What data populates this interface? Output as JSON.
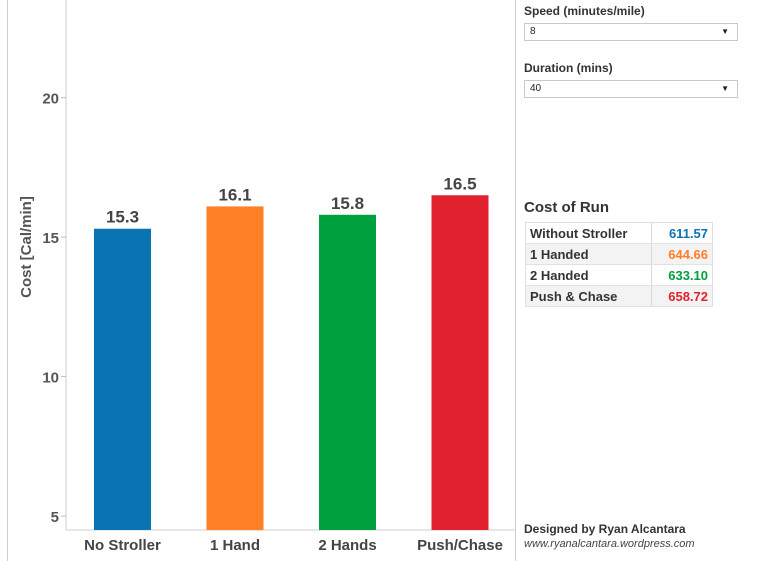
{
  "colors": {
    "no_stroller": "#0a74b3",
    "one_hand": "#ff7f27",
    "two_hands": "#00a03e",
    "push_chase": "#e1212e"
  },
  "chart_data": {
    "type": "bar",
    "categories": [
      "No Stroller",
      "1 Hand",
      "2 Hands",
      "Push/Chase"
    ],
    "values": [
      15.3,
      16.1,
      15.8,
      16.5
    ],
    "data_labels": [
      "15.3",
      "16.1",
      "15.8",
      "16.5"
    ],
    "ylabel": "Cost [Cal/min]",
    "yticks": [
      5,
      10,
      15,
      20
    ],
    "ylim": [
      4.5,
      23.5
    ],
    "grid": false,
    "series_colors": [
      "#0a74b3",
      "#ff7f27",
      "#00a03e",
      "#e1212e"
    ]
  },
  "controls": {
    "speed": {
      "label": "Speed (minutes/mile)",
      "value": "8"
    },
    "duration": {
      "label": "Duration (mins)",
      "value": "40"
    }
  },
  "cost_of_run": {
    "title": "Cost of Run",
    "rows": [
      {
        "label": "Without Stroller",
        "value": "611.57",
        "color": "#0a74b3"
      },
      {
        "label": "1 Handed",
        "value": "644.66",
        "color": "#ff7f27"
      },
      {
        "label": "2 Handed",
        "value": "633.10",
        "color": "#00a03e"
      },
      {
        "label": "Push & Chase",
        "value": "658.72",
        "color": "#e1212e"
      }
    ]
  },
  "credit": {
    "name": "Designed by Ryan Alcantara",
    "url": "www.ryanalcantara.wordpress.com"
  }
}
